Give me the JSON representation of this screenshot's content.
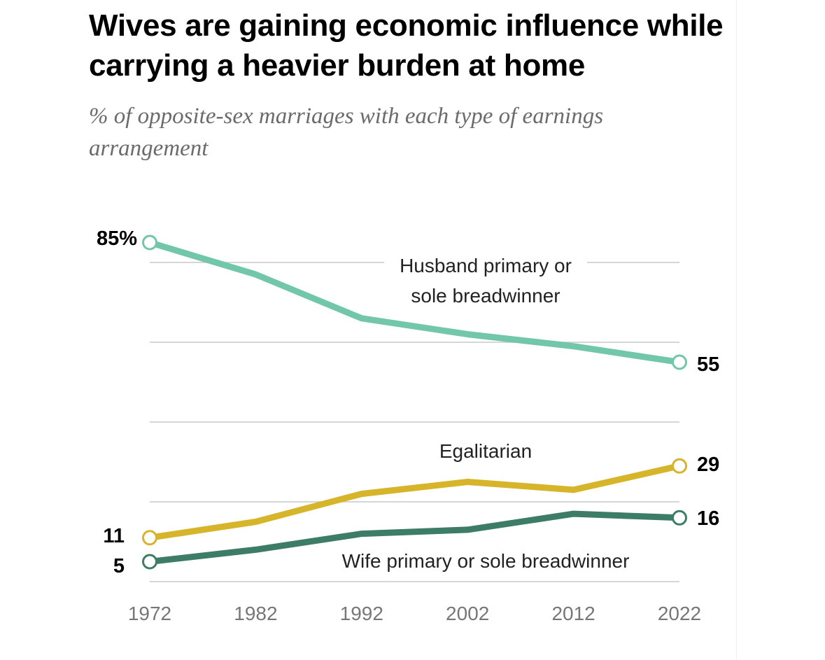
{
  "title": "Wives are gaining economic influence while carrying a heavier burden at home",
  "subtitle": "% of opposite-sex marriages with each type of earnings arrangement",
  "chart_data": {
    "type": "line",
    "title": "Wives are gaining economic influence while carrying a heavier burden at home",
    "subtitle": "% of opposite-sex marriages with each type of earnings arrangement",
    "xlabel": "",
    "ylabel": "",
    "x": [
      1972,
      1982,
      1992,
      2002,
      2012,
      2022
    ],
    "x_tick_labels": [
      "1972",
      "1982",
      "1992",
      "2002",
      "2012",
      "2022"
    ],
    "ylim": [
      0,
      90
    ],
    "gridlines_y": [
      0,
      20,
      40,
      60,
      80
    ],
    "grid": true,
    "legend": "inline labels",
    "series": [
      {
        "name": "Husband primary or sole breadwinner",
        "values": [
          85,
          77,
          66,
          62,
          59,
          55
        ],
        "color": "#72c7aa",
        "start_label": "85%",
        "end_label": "55"
      },
      {
        "name": "Egalitarian",
        "values": [
          11,
          15,
          22,
          25,
          23,
          29
        ],
        "color": "#d7b52a",
        "start_label": "11",
        "end_label": "29"
      },
      {
        "name": "Wife primary or sole breadwinner",
        "values": [
          5,
          8,
          12,
          13,
          17,
          16
        ],
        "color": "#3d7c66",
        "start_label": "5",
        "end_label": "16"
      }
    ],
    "series_labels": [
      {
        "series": 0,
        "lines": [
          "Husband primary or",
          "sole breadwinner"
        ]
      },
      {
        "series": 1,
        "lines": [
          "Egalitarian"
        ]
      },
      {
        "series": 2,
        "lines": [
          "Wife primary or sole breadwinner"
        ]
      }
    ]
  },
  "colors": {
    "gridline": "#c9c9c9",
    "axis_text": "#777777",
    "subtitle_text": "#6b6b6b"
  }
}
